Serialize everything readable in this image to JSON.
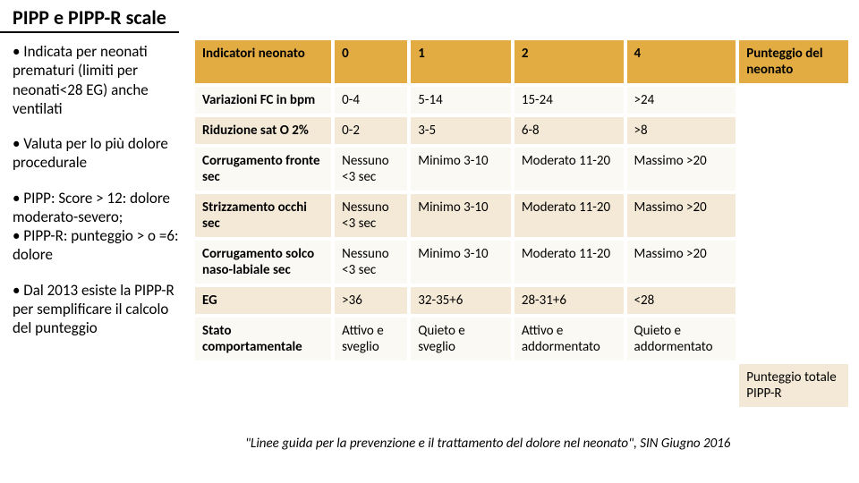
{
  "title": "PIPP e PIPP-R scale",
  "sidebar": {
    "bullets": [
      "• Indicata per neonati prematuri (limiti per neonati<28 EG) anche ventilati",
      "• Valuta per lo più dolore procedurale",
      "• PIPP: Score > 12: dolore moderato-severo;\n• PIPP-R: punteggio > o =6: dolore",
      "• Dal 2013 esiste la PIPP-R per semplificare il calcolo del punteggio"
    ]
  },
  "table": {
    "headers": [
      "Indicatori neonato",
      "0",
      "1",
      "2",
      "4",
      "Punteggio del neonato"
    ],
    "rows": [
      {
        "cells": [
          "Variazioni FC in bpm",
          "0-4",
          "5-14",
          "15-24",
          ">24",
          ""
        ],
        "alt": "a"
      },
      {
        "cells": [
          "Riduzione sat O 2%",
          "0-2",
          "3-5",
          "6-8",
          ">8",
          ""
        ],
        "alt": "b"
      },
      {
        "cells": [
          "Corrugamento fronte sec",
          "Nessuno <3 sec",
          "Minimo 3-10",
          "Moderato 11-20",
          "Massimo >20",
          ""
        ],
        "alt": "a"
      },
      {
        "cells": [
          "Strizzamento occhi sec",
          "Nessuno <3 sec",
          "Minimo 3-10",
          "Moderato 11-20",
          "Massimo >20",
          ""
        ],
        "alt": "b"
      },
      {
        "cells": [
          "Corrugamento solco naso-labiale sec",
          "Nessuno <3 sec",
          "Minimo 3-10",
          "Moderato 11-20",
          "Massimo >20",
          ""
        ],
        "alt": "a"
      },
      {
        "cells": [
          "EG",
          ">36",
          "32-35+6",
          "28-31+6",
          "<28",
          ""
        ],
        "alt": "b"
      },
      {
        "cells": [
          "Stato comportamentale",
          "Attivo e sveglio",
          "Quieto e sveglio",
          "Attivo e addormentato",
          "Quieto e addormentato",
          ""
        ],
        "alt": "a"
      }
    ],
    "total_label": "Punteggio totale PIPP-R"
  },
  "citation": "\"Linee guida per la prevenzione e il trattamento del dolore nel neonato\", SIN Giugno 2016",
  "colors": {
    "header_bg": "#e2ac43",
    "row_a": "#fbf9f4",
    "row_b": "#f3e9d6"
  }
}
